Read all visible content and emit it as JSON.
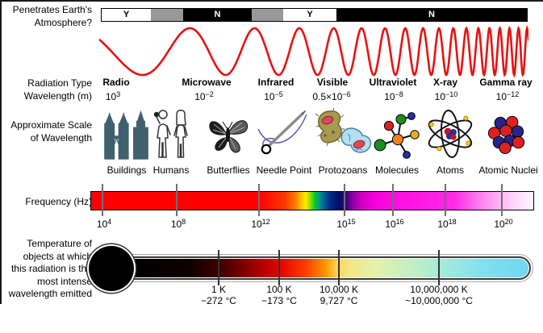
{
  "colors": {
    "wave_red": "#e81212",
    "segment_gray": "#989898",
    "frequency_left_red": "#ff0000",
    "frequency_magenta": "#ff10e4",
    "frequency_right_white": "#fff8ff",
    "thermometer_left_black": "#000000",
    "thermometer_right_cyan": "#6ed7f2",
    "building_slate": "#41606e"
  },
  "atmosphere": {
    "label_line1": "Penetrates Earth's",
    "label_line2": "Atmosphere?",
    "segments": [
      {
        "label": "Y"
      },
      {
        "label": ""
      },
      {
        "label": "N"
      },
      {
        "label": ""
      },
      {
        "label": "Y"
      },
      {
        "label": "N"
      }
    ]
  },
  "radiation": {
    "row_label1": "Radiation Type",
    "row_label2": "Wavelength (m)",
    "types": [
      {
        "name": "Radio",
        "wl_base": "10",
        "wl_exp": "3"
      },
      {
        "name": "Microwave",
        "wl_base": "10",
        "wl_exp": "−2"
      },
      {
        "name": "Infrared",
        "wl_base": "10",
        "wl_exp": "−5"
      },
      {
        "name": "Visible",
        "wl_base": "0.5×10",
        "wl_exp": "−6"
      },
      {
        "name": "Ultraviolet",
        "wl_base": "10",
        "wl_exp": "−8"
      },
      {
        "name": "X-ray",
        "wl_base": "10",
        "wl_exp": "−10"
      },
      {
        "name": "Gamma ray",
        "wl_base": "10",
        "wl_exp": "−12"
      }
    ]
  },
  "scale": {
    "row_label1": "Approximate Scale",
    "row_label2": "of Wavelength",
    "items": [
      {
        "label": "Buildings"
      },
      {
        "label": "Humans"
      },
      {
        "label": "Butterflies"
      },
      {
        "label": "Needle Point"
      },
      {
        "label": "Protozoans"
      },
      {
        "label": "Molecules"
      },
      {
        "label": "Atoms"
      },
      {
        "label": "Atomic Nuclei"
      }
    ]
  },
  "frequency": {
    "row_label": "Frequency (Hz)",
    "ticks": [
      {
        "base": "10",
        "exp": "4"
      },
      {
        "base": "10",
        "exp": "8"
      },
      {
        "base": "10",
        "exp": "12"
      },
      {
        "base": "10",
        "exp": "15"
      },
      {
        "base": "10",
        "exp": "16"
      },
      {
        "base": "10",
        "exp": "18"
      },
      {
        "base": "10",
        "exp": "20"
      }
    ]
  },
  "temperature": {
    "row_label_lines": [
      "Temperature of",
      "objects at which",
      "this radiation is the",
      "most intense",
      "wavelength emitted"
    ],
    "ticks": [
      {
        "kelvin": "1 K",
        "celsius": "−272 °C"
      },
      {
        "kelvin": "100 K",
        "celsius": "−173 °C"
      },
      {
        "kelvin": "10,000 K",
        "celsius": "9,727 °C"
      },
      {
        "kelvin": "10,000,000 K",
        "celsius": "~10,000,000 °C"
      }
    ]
  }
}
